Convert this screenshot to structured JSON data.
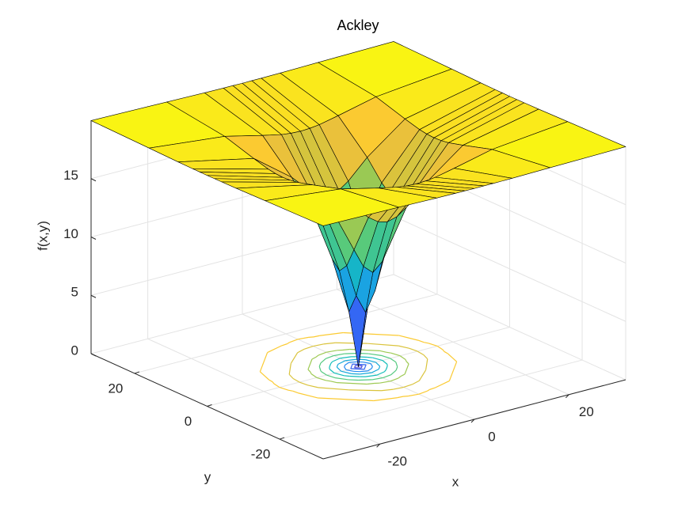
{
  "chart_data": {
    "type": "surface",
    "title": "Ackley",
    "x_label": "x",
    "y_label": "y",
    "z_label": "f(x,y)",
    "x": [
      -32,
      -16,
      -8,
      -4,
      -2,
      0,
      2,
      4,
      8,
      16,
      32
    ],
    "y": [
      -32,
      -16,
      -8,
      -4,
      -2,
      0,
      2,
      4,
      8,
      16,
      32
    ],
    "z": [
      [
        19.97,
        19.87,
        19.81,
        19.79,
        19.79,
        19.78,
        19.79,
        19.79,
        19.81,
        19.87,
        19.97
      ],
      [
        19.87,
        19.18,
        18.41,
        18.06,
        17.96,
        17.92,
        17.96,
        18.06,
        18.41,
        19.18,
        19.87
      ],
      [
        19.81,
        18.41,
        15.96,
        14.35,
        13.77,
        13.55,
        13.77,
        14.35,
        15.96,
        18.41,
        19.81
      ],
      [
        19.79,
        18.06,
        14.35,
        11.01,
        9.37,
        8.64,
        9.37,
        11.01,
        14.35,
        18.06,
        19.79
      ],
      [
        19.79,
        17.96,
        13.77,
        9.37,
        6.59,
        4.93,
        6.59,
        9.37,
        13.77,
        17.96,
        19.79
      ],
      [
        19.78,
        17.92,
        13.55,
        8.64,
        4.93,
        0,
        4.93,
        8.64,
        13.55,
        17.92,
        19.78
      ],
      [
        19.79,
        17.96,
        13.77,
        9.37,
        6.59,
        4.93,
        6.59,
        9.37,
        13.77,
        17.96,
        19.79
      ],
      [
        19.79,
        18.06,
        14.35,
        11.01,
        9.37,
        8.64,
        9.37,
        11.01,
        14.35,
        18.06,
        19.79
      ],
      [
        19.81,
        18.41,
        15.96,
        14.35,
        13.77,
        13.55,
        13.77,
        14.35,
        15.96,
        18.41,
        19.81
      ],
      [
        19.87,
        19.18,
        18.41,
        18.06,
        17.96,
        17.92,
        17.96,
        18.06,
        18.41,
        19.18,
        19.87
      ],
      [
        19.97,
        19.87,
        19.81,
        19.79,
        19.79,
        19.78,
        19.79,
        19.79,
        19.81,
        19.87,
        19.97
      ]
    ],
    "xlim": [
      -32,
      32
    ],
    "ylim": [
      -32,
      32
    ],
    "zlim": [
      0,
      20
    ],
    "xticks": [
      -20,
      0,
      20
    ],
    "yticks": [
      -20,
      0,
      20
    ],
    "zticks": [
      0,
      5,
      10,
      15
    ],
    "colormap": "parula",
    "edge_color": "#000000",
    "grid": true,
    "contour": true,
    "contour_levels": [
      2,
      4,
      6,
      8,
      10,
      12,
      14,
      16,
      18
    ]
  }
}
